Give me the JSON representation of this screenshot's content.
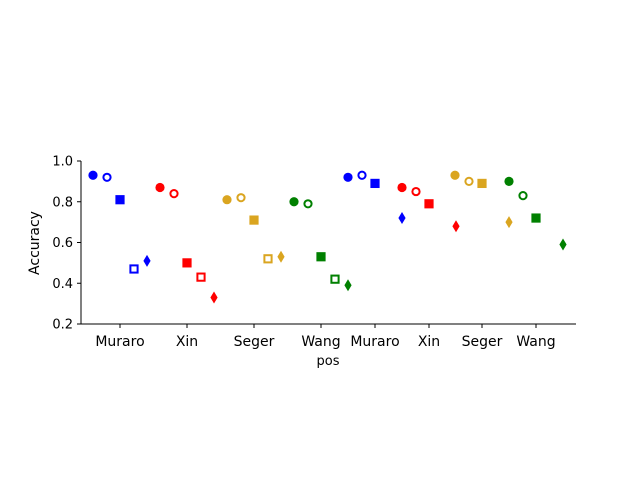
{
  "chart_data": {
    "type": "scatter",
    "ylabel": "Accuracy",
    "xlabel": "pos",
    "ylim": [
      0.2,
      1.0
    ],
    "yticks": [
      0.2,
      0.4,
      0.6,
      0.8,
      1.0
    ],
    "ytick_labels": [
      "0.2",
      "0.4",
      "0.6",
      "0.8",
      "1.0"
    ],
    "categories": [
      "Muraro",
      "Xin",
      "Seger",
      "Wang",
      "Muraro",
      "Xin",
      "Seger",
      "Wang"
    ],
    "colors": {
      "Muraro": "#0000ff",
      "Xin": "#ff0000",
      "Seger": "#daa520",
      "Wang": "#008000"
    },
    "marker_order": [
      "circle-filled",
      "circle-open",
      "square-filled",
      "square-open",
      "diamond-filled"
    ],
    "groups": [
      {
        "label": "Muraro",
        "color": "#0000ff",
        "values": [
          0.93,
          0.92,
          0.81,
          0.47,
          0.51
        ]
      },
      {
        "label": "Xin",
        "color": "#ff0000",
        "values": [
          0.87,
          0.84,
          0.5,
          0.43,
          0.33
        ]
      },
      {
        "label": "Seger",
        "color": "#daa520",
        "values": [
          0.81,
          0.82,
          0.71,
          0.52,
          0.53
        ]
      },
      {
        "label": "Wang",
        "color": "#008000",
        "values": [
          0.8,
          0.79,
          0.53,
          0.42,
          0.39
        ]
      },
      {
        "label": "Muraro",
        "color": "#0000ff",
        "values": [
          0.92,
          0.93,
          0.89,
          null,
          0.72
        ]
      },
      {
        "label": "Xin",
        "color": "#ff0000",
        "values": [
          0.87,
          0.85,
          0.79,
          null,
          0.68
        ]
      },
      {
        "label": "Seger",
        "color": "#daa520",
        "values": [
          0.93,
          0.9,
          0.89,
          null,
          0.7
        ]
      },
      {
        "label": "Wang",
        "color": "#008000",
        "values": [
          0.9,
          0.83,
          0.72,
          null,
          0.59
        ]
      }
    ]
  }
}
